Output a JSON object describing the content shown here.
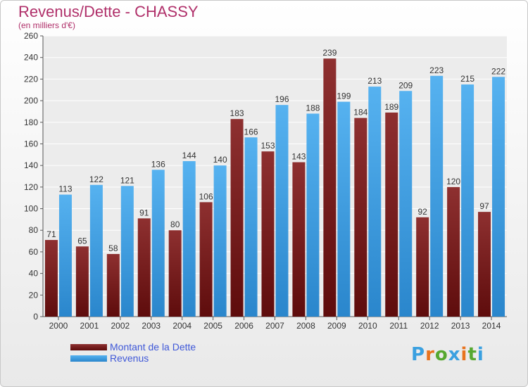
{
  "chart_data": {
    "type": "bar",
    "title": "Revenus/Dette - CHASSY",
    "subtitle": "(en milliers d'€)",
    "categories": [
      "2000",
      "2001",
      "2002",
      "2003",
      "2004",
      "2005",
      "2006",
      "2007",
      "2008",
      "2009",
      "2010",
      "2011",
      "2012",
      "2013",
      "2014"
    ],
    "series": [
      {
        "name": "Montant de la Dette",
        "color": "#7a1f1f",
        "values": [
          71,
          65,
          58,
          91,
          80,
          106,
          183,
          153,
          143,
          239,
          184,
          189,
          92,
          120,
          97
        ]
      },
      {
        "name": "Revenus",
        "color": "#3c9ee5",
        "values": [
          113,
          122,
          121,
          136,
          144,
          140,
          166,
          196,
          188,
          199,
          213,
          209,
          223,
          215,
          222
        ]
      }
    ],
    "ylim": [
      0,
      260
    ],
    "ytick_step": 20,
    "grid": true,
    "legend_position": "bottom-left"
  },
  "logo": {
    "letters": [
      "P",
      "r",
      "o",
      "x",
      "i",
      "t",
      "i"
    ],
    "colors": [
      "#3aa0e0",
      "#e8731e",
      "#56a830",
      "#3aa0e0",
      "#e8731e",
      "#56a830",
      "#3aa0e0"
    ]
  }
}
